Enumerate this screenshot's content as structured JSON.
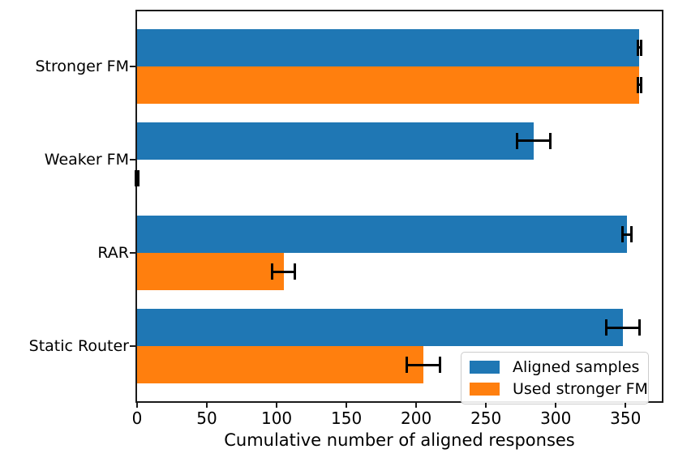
{
  "figure": {
    "background": "#ffffff",
    "spine_color": "#1a1a1a"
  },
  "chart_data": {
    "type": "bar",
    "orientation": "horizontal",
    "title": "",
    "xlabel": "Cumulative number of aligned responses",
    "ylabel": "",
    "categories": [
      "Stronger FM",
      "Weaker FM",
      "RAR",
      "Static Router"
    ],
    "series": [
      {
        "name": "Aligned samples",
        "color": "#1f77b4",
        "values": [
          360,
          284,
          351,
          348
        ],
        "errors": [
          1,
          12,
          3,
          12
        ]
      },
      {
        "name": "Used stronger FM",
        "color": "#ff7f0e",
        "values": [
          360,
          0,
          105,
          205
        ],
        "errors": [
          1,
          1,
          8,
          12
        ]
      }
    ],
    "error_bar_color": "#000000",
    "xticks": [
      0,
      50,
      100,
      150,
      200,
      250,
      300,
      350
    ],
    "xlim": [
      0,
      376
    ],
    "bar_height_fraction": 0.4,
    "grid": false,
    "legend": {
      "position": "lower right",
      "entries": [
        "Aligned samples",
        "Used stronger FM"
      ]
    }
  }
}
